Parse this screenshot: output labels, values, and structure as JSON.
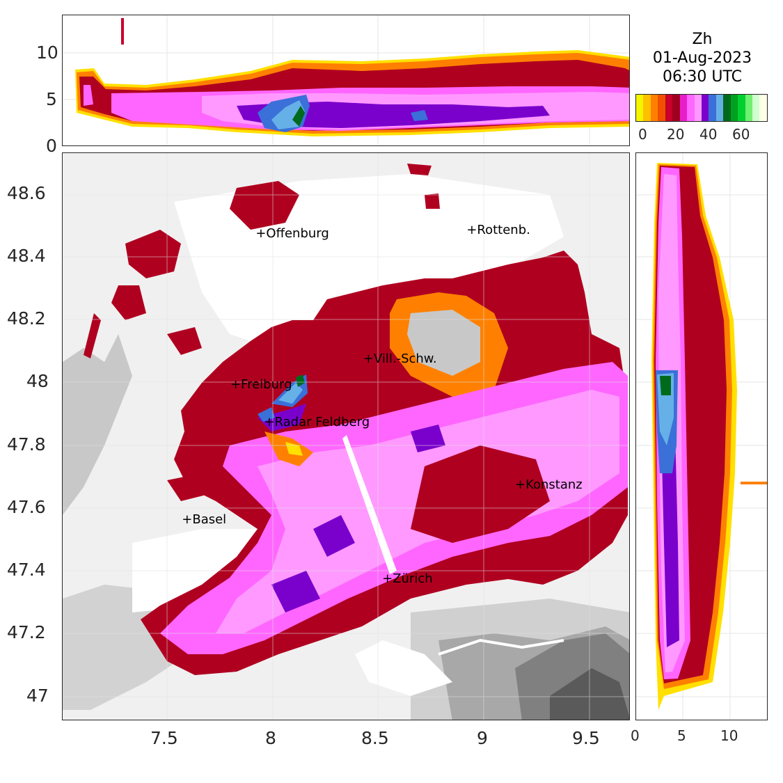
{
  "title": {
    "line1": "Zh",
    "line2": "01-Aug-2023",
    "line3": "06:30 UTC"
  },
  "colorbar": {
    "colors": [
      "#f5f500",
      "#ffc000",
      "#ff8000",
      "#f05000",
      "#c8002a",
      "#a00020",
      "#e81ec8",
      "#ff66ff",
      "#ff99ff",
      "#7a00cc",
      "#3a70d8",
      "#66b0e8",
      "#006a1c",
      "#00a020",
      "#00d030",
      "#70f070",
      "#d0ffd0",
      "#ffffe8"
    ],
    "ticks": [
      "0",
      "20",
      "40",
      "60"
    ]
  },
  "main_map": {
    "x_ticks": [
      "7.5",
      "8",
      "8.5",
      "9",
      "9.5"
    ],
    "y_ticks": [
      "48.6",
      "48.4",
      "48.2",
      "48",
      "47.8",
      "47.6",
      "47.4",
      "47.2",
      "47"
    ]
  },
  "top_panel": {
    "y_ticks": [
      "10",
      "5",
      "0"
    ]
  },
  "right_panel": {
    "x_ticks": [
      "0",
      "5",
      "10"
    ]
  },
  "cities": [
    {
      "name": "Offenburg",
      "lon": 7.94,
      "lat": 48.47
    },
    {
      "name": "Rottenb.",
      "lon": 8.94,
      "lat": 48.48
    },
    {
      "name": "Vill.-Schw.",
      "lon": 8.45,
      "lat": 48.07
    },
    {
      "name": "Freiburg",
      "lon": 7.82,
      "lat": 47.99
    },
    {
      "name": "Radar Feldberg",
      "lon": 7.98,
      "lat": 47.87
    },
    {
      "name": "Konstanz",
      "lon": 9.17,
      "lat": 47.67
    },
    {
      "name": "Basel",
      "lon": 7.59,
      "lat": 47.56
    },
    {
      "name": "Zürich",
      "lon": 8.54,
      "lat": 47.37
    }
  ]
}
